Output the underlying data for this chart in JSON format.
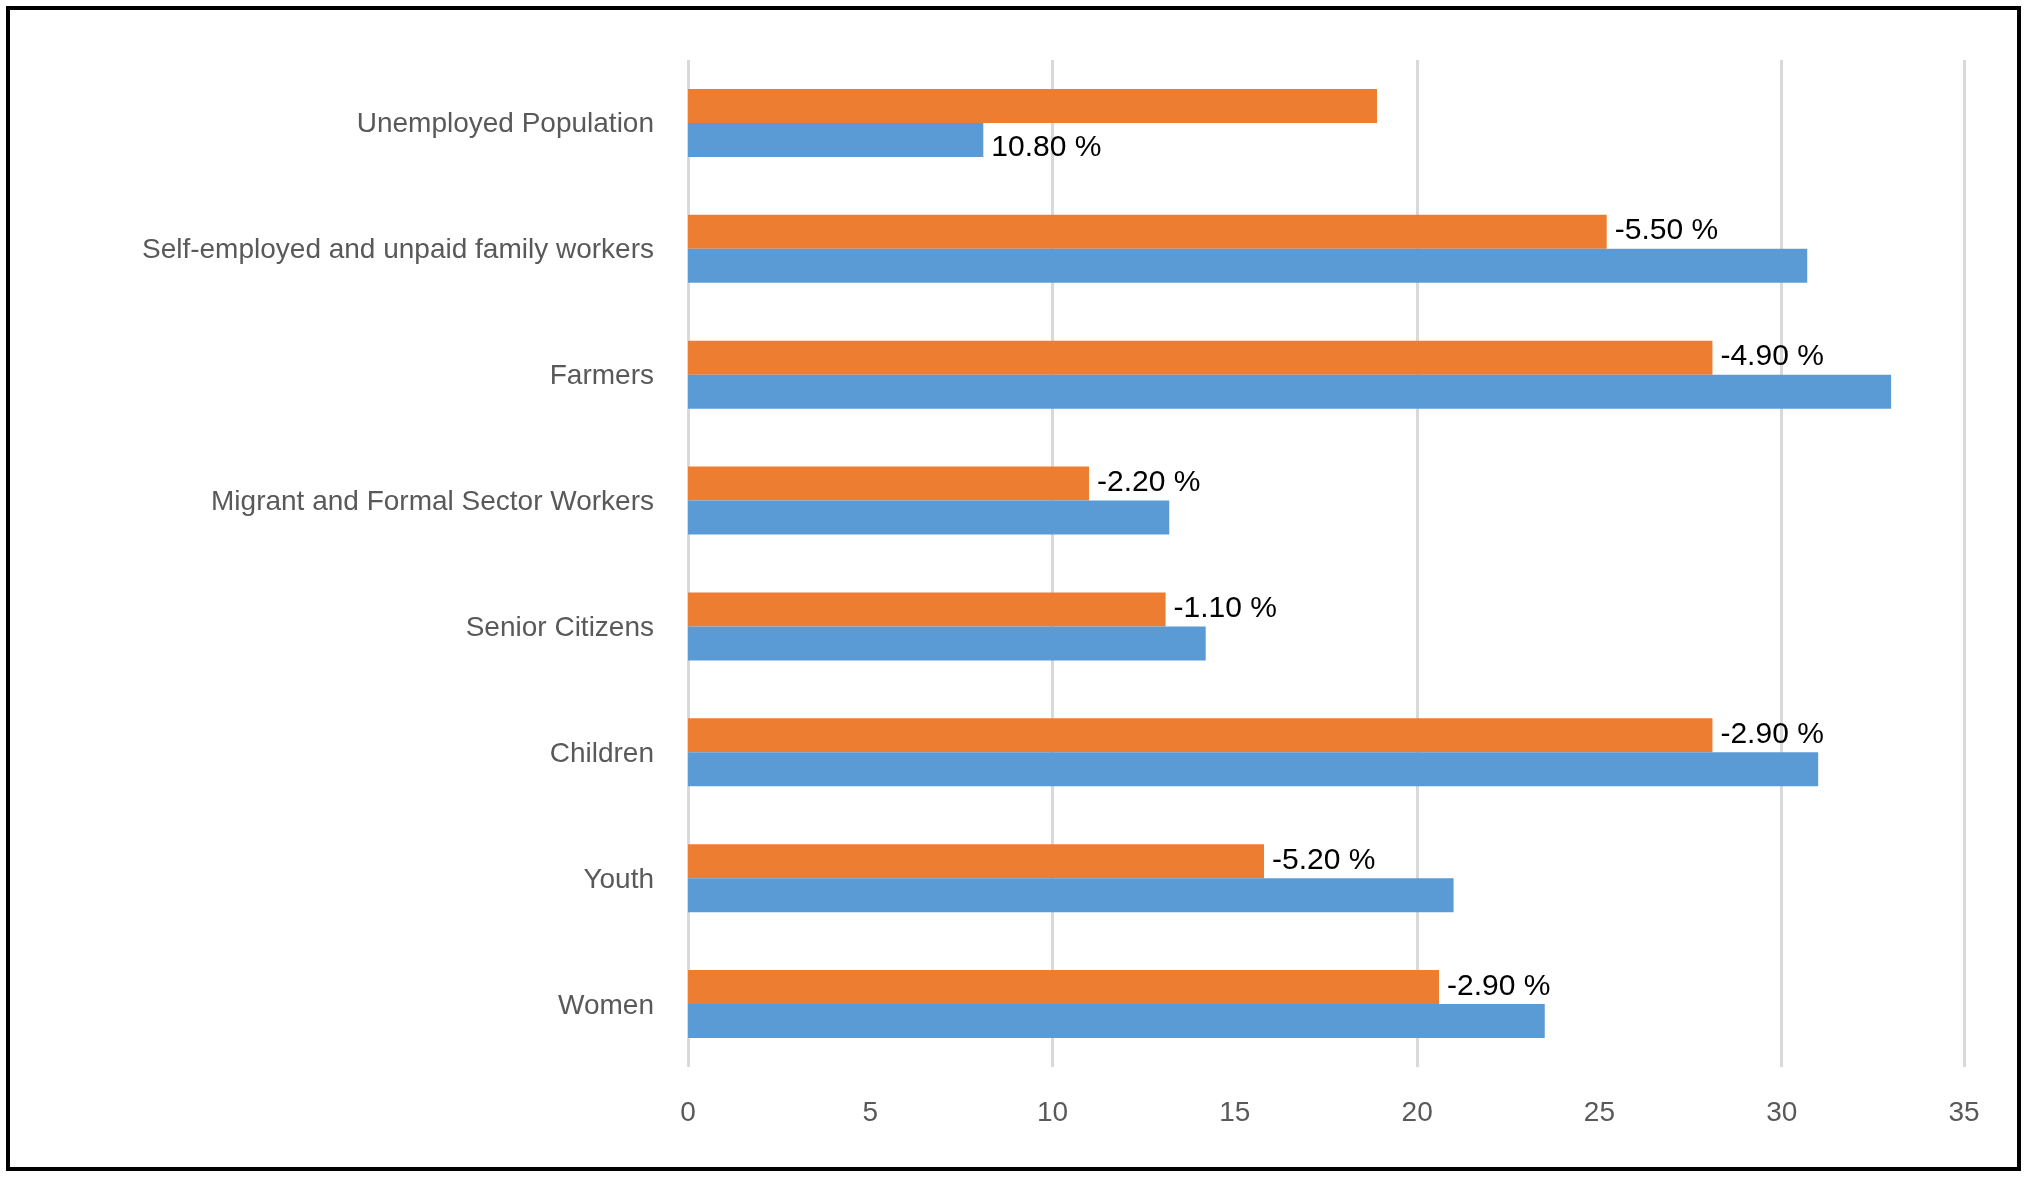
{
  "chart_data": {
    "type": "bar",
    "orientation": "horizontal",
    "categories": [
      "Unemployed Population",
      "Self-employed and unpaid family workers",
      "Farmers",
      "Migrant and Formal Sector Workers",
      "Senior Citizens",
      "Children",
      "Youth",
      "Women"
    ],
    "series": [
      {
        "color": "#ed7d31",
        "values": [
          18.9,
          25.2,
          28.1,
          11.0,
          13.1,
          28.1,
          15.8,
          20.6
        ]
      },
      {
        "color": "#5b9bd5",
        "values": [
          8.1,
          30.7,
          33.0,
          13.2,
          14.2,
          31.0,
          21.0,
          23.5
        ]
      }
    ],
    "annotations": [
      {
        "text": "10.80 %",
        "x": 8.1,
        "y": "Unemployed Population"
      },
      {
        "text": "-5.50 %",
        "x": 25.2,
        "y": "Self-employed and unpaid family workers"
      },
      {
        "text": "-4.90 %",
        "x": 28.1,
        "y": "Farmers"
      },
      {
        "text": "-2.20 %",
        "x": 11.0,
        "y": "Migrant and Formal Sector Workers"
      },
      {
        "text": "-1.10 %",
        "x": 13.1,
        "y": "Senior Citizens"
      },
      {
        "text": "-2.90 %",
        "x": 28.1,
        "y": "Children"
      },
      {
        "text": "-5.20 %",
        "x": 15.8,
        "y": "Youth"
      },
      {
        "text": "-2.90 %",
        "x": 20.6,
        "y": "Women"
      }
    ],
    "xlim": [
      0,
      35
    ],
    "xticks": [
      0,
      5,
      10,
      15,
      20,
      25,
      30,
      35
    ],
    "grid": "x"
  }
}
